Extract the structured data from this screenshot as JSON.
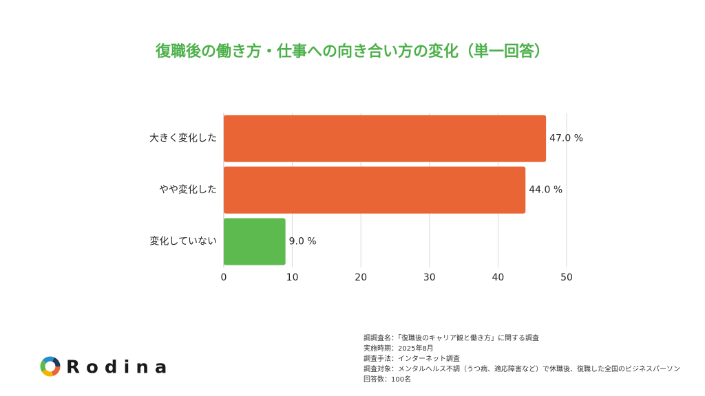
{
  "chart_data": {
    "type": "bar",
    "orientation": "horizontal",
    "title": "復職後の働き方・仕事への向き合い方の変化（単一回答）",
    "categories": [
      "大きく変化した",
      "やや変化した",
      "変化していない"
    ],
    "values": [
      47.0,
      44.0,
      9.0
    ],
    "value_labels": [
      "47.0 %",
      "44.0 %",
      "9.0 %"
    ],
    "colors": [
      "#e96535",
      "#e96535",
      "#5cba4f"
    ],
    "xlim": [
      0,
      50
    ],
    "xticks": [
      0,
      10,
      20,
      30,
      40,
      50
    ],
    "grid": true
  },
  "notes": [
    "調調査名：「復職後のキャリア観と働き方」に関する調査",
    "実施時期：2025年8月",
    "調査手法：インターネット調査",
    "調査対象：メンタルヘルス不調（うつ病、適応障害など）で休職後、復職した全国のビジネスパーソン",
    "回答数：100名"
  ],
  "logo": "Rodina"
}
